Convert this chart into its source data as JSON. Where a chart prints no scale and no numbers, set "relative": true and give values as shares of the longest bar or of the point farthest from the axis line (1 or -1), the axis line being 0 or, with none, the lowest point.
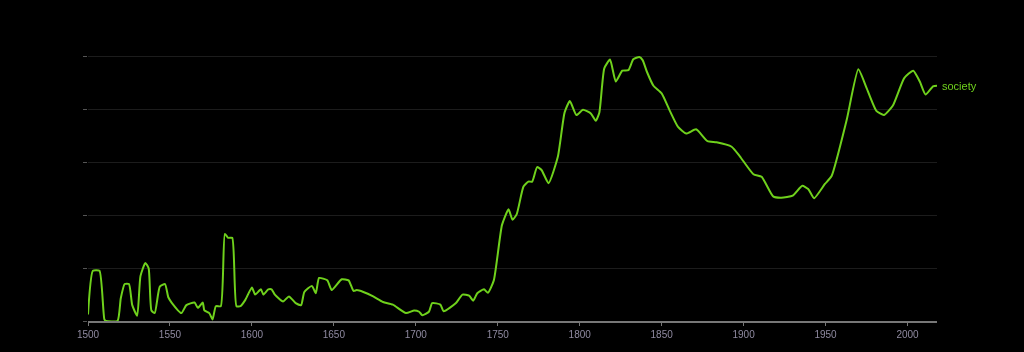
{
  "chart_data": {
    "type": "line",
    "relative": true,
    "xlim": [
      1500,
      2018
    ],
    "xticks": [
      1500,
      1550,
      1600,
      1650,
      1700,
      1750,
      1800,
      1850,
      1900,
      1950,
      2000
    ],
    "grid": "y",
    "legend": false,
    "tick_labels": "x",
    "series": [
      {
        "name": "society",
        "color": "#6fd11c",
        "x": [
          1500,
          1503,
          1507,
          1510,
          1511,
          1518,
          1520,
          1522.4,
          1525,
          1527,
          1530,
          1532,
          1535,
          1537,
          1538.7,
          1540.7,
          1543.8,
          1547,
          1549,
          1551,
          1557,
          1560,
          1565,
          1567,
          1570,
          1571,
          1574,
          1576,
          1578,
          1581,
          1583.5,
          1585.5,
          1588,
          1590.6,
          1593,
          1596,
          1600,
          1602,
          1605.5,
          1607,
          1610,
          1612,
          1614,
          1619,
          1622.6,
          1626.7,
          1630,
          1632,
          1636.6,
          1639,
          1641,
          1646,
          1648.7,
          1654.8,
          1659,
          1662,
          1664,
          1668,
          1674,
          1680,
          1686,
          1694,
          1699,
          1702,
          1704,
          1708,
          1710,
          1715,
          1717,
          1724.5,
          1728.5,
          1732.5,
          1735,
          1737.5,
          1741.6,
          1744,
          1747.6,
          1752.6,
          1756.6,
          1759,
          1761.6,
          1765.7,
          1768.7,
          1771,
          1774,
          1776.7,
          1781,
          1786.7,
          1790.8,
          1794,
          1798,
          1802,
          1806.8,
          1809.8,
          1812,
          1815,
          1818.5,
          1822,
          1826,
          1829.7,
          1832.7,
          1836.4,
          1838.4,
          1841,
          1845,
          1850,
          1855,
          1860,
          1865,
          1871,
          1878,
          1883.5,
          1892.7,
          1897.8,
          1906,
          1911,
          1918,
          1923,
          1930,
          1935.8,
          1939.4,
          1943,
          1949.6,
          1953.7,
          1962.8,
          1970,
          1975,
          1981,
          1985.6,
          1991,
          1998,
          2003.5,
          2007.5,
          2011,
          2015.6,
          2018
        ],
        "values": [
          0.025,
          0.19,
          0.19,
          0.006,
          0,
          0,
          0.086,
          0.14,
          0.14,
          0.06,
          0.02,
          0.17,
          0.22,
          0.2,
          0.04,
          0.03,
          0.13,
          0.14,
          0.09,
          0.07,
          0.03,
          0.06,
          0.07,
          0.05,
          0.07,
          0.04,
          0.03,
          0.006,
          0.056,
          0.056,
          0.33,
          0.315,
          0.315,
          0.056,
          0.056,
          0.08,
          0.127,
          0.1,
          0.12,
          0.1,
          0.12,
          0.12,
          0.1,
          0.074,
          0.093,
          0.068,
          0.06,
          0.11,
          0.133,
          0.105,
          0.163,
          0.154,
          0.117,
          0.158,
          0.154,
          0.114,
          0.117,
          0.11,
          0.093,
          0.072,
          0.062,
          0.03,
          0.04,
          0.035,
          0.022,
          0.035,
          0.068,
          0.062,
          0.037,
          0.068,
          0.1,
          0.096,
          0.077,
          0.105,
          0.12,
          0.107,
          0.154,
          0.364,
          0.423,
          0.383,
          0.405,
          0.509,
          0.528,
          0.528,
          0.583,
          0.572,
          0.522,
          0.623,
          0.79,
          0.833,
          0.78,
          0.8,
          0.786,
          0.758,
          0.79,
          0.957,
          0.99,
          0.907,
          0.948,
          0.95,
          0.991,
          1.0,
          0.988,
          0.944,
          0.891,
          0.862,
          0.796,
          0.735,
          0.71,
          0.726,
          0.681,
          0.677,
          0.66,
          0.623,
          0.556,
          0.546,
          0.472,
          0.467,
          0.475,
          0.512,
          0.5,
          0.465,
          0.519,
          0.549,
          0.759,
          0.953,
          0.883,
          0.796,
          0.78,
          0.815,
          0.92,
          0.948,
          0.907,
          0.858,
          0.889,
          0.891
        ]
      }
    ]
  }
}
